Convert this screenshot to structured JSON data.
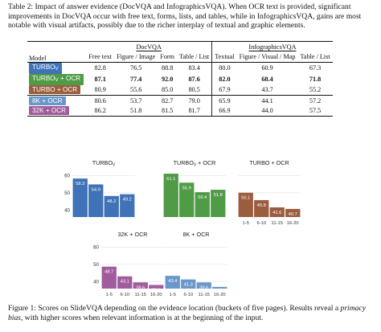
{
  "table": {
    "caption_label": "Table 2:",
    "caption_text": "Impact of answer evidence (DocVQA and InfographicsVQA). When OCR text is provided, significant improvements in DocVQA occur with free text, forms, lists, and tables, while in InfographicsVQA, gains are most notable with visual artifacts, possibly due to the richer interplay of textual and graphic elements.",
    "group_headers": [
      "DocVQA",
      "InfographicsVQA"
    ],
    "model_header": "Model",
    "columns": [
      "Free text",
      "Figure / Image",
      "Form",
      "Table / List",
      "Textual",
      "Figure / Visual / Map",
      "Table / List"
    ],
    "rows": [
      {
        "model": "TURBO",
        "sub": "V",
        "suffix": "",
        "color": "#3f72b6",
        "values": [
          "82.8",
          "76.5",
          "88.8",
          "83.4",
          "80.0",
          "60.9",
          "67.3"
        ],
        "bold": false
      },
      {
        "model": "TURBO",
        "sub": "V",
        "suffix": " + OCR",
        "color": "#4f9b46",
        "values": [
          "87.1",
          "77.4",
          "92.0",
          "87.6",
          "82.0",
          "68.4",
          "71.8"
        ],
        "bold": true
      },
      {
        "model": "TURBO + OCR",
        "sub": "",
        "suffix": "",
        "color": "#9a5e3f",
        "values": [
          "80.9",
          "55.6",
          "85.0",
          "80.5",
          "67.9",
          "43.7",
          "55.2"
        ],
        "bold": false
      },
      {
        "model": "8K + OCR",
        "sub": "",
        "suffix": "",
        "color": "#6a97c9",
        "values": [
          "80.6",
          "53.7",
          "82.7",
          "79.0",
          "65.9",
          "44.1",
          "57.2"
        ],
        "bold": false
      },
      {
        "model": "32K + OCR",
        "sub": "",
        "suffix": "",
        "color": "#a05c9c",
        "values": [
          "86.2",
          "51.8",
          "81.5",
          "81.7",
          "66.9",
          "44.0",
          "57.5"
        ],
        "bold": false
      }
    ]
  },
  "figure": {
    "caption_label": "Figure 1:",
    "caption_text_1": "Scores on SlideVQA depending on the evidence location (buckets of five pages). Results reveal a",
    "caption_italic": "primacy bias",
    "caption_text_2": ", with higher scores when relevant information is at the beginning of the input."
  },
  "chart_data": [
    {
      "type": "bar",
      "title": "TURBO",
      "title_sub": "V",
      "title_suffix": "",
      "color": "#3f72b6",
      "categories": [
        "1-5",
        "6-10",
        "11-15",
        "16-20"
      ],
      "values": [
        58.3,
        54.9,
        48.2,
        49.2
      ],
      "show_y_ticks": true,
      "show_x_ticks": false,
      "yticks": [
        40,
        50,
        60
      ],
      "ylim": [
        36,
        63
      ]
    },
    {
      "type": "bar",
      "title": "TURBO",
      "title_sub": "V",
      "title_suffix": " + OCR",
      "color": "#4f9b46",
      "categories": [
        "1-5",
        "6-10",
        "11-15",
        "16-20"
      ],
      "values": [
        61.1,
        55.9,
        50.4,
        51.8
      ],
      "show_y_ticks": false,
      "show_x_ticks": false,
      "yticks": [
        40,
        50,
        60
      ],
      "ylim": [
        36,
        63
      ]
    },
    {
      "type": "bar",
      "title": "TURBO + OCR",
      "title_sub": "",
      "title_suffix": "",
      "color": "#9a5e3f",
      "categories": [
        "1-5",
        "6-10",
        "11-15",
        "16-20"
      ],
      "values": [
        50.1,
        45.8,
        41.6,
        40.7
      ],
      "show_y_ticks": false,
      "show_x_ticks": true,
      "yticks": [
        40,
        50,
        60
      ],
      "ylim": [
        36,
        63
      ]
    },
    {
      "type": "bar",
      "title": "32K + OCR",
      "title_sub": "",
      "title_suffix": "",
      "color": "#a05c9c",
      "categories": [
        "1-5",
        "6-10",
        "11-15",
        "16-20"
      ],
      "values": [
        48.7,
        43.1,
        39.6,
        38.1
      ],
      "show_y_ticks": true,
      "show_x_ticks": true,
      "yticks": [
        40,
        50,
        60
      ],
      "ylim": [
        36,
        63
      ]
    },
    {
      "type": "bar",
      "title": "8K + OCR",
      "title_sub": "",
      "title_suffix": "",
      "color": "#6a97c9",
      "categories": [
        "1-5",
        "6-10",
        "11-15",
        "16-20"
      ],
      "values": [
        43.4,
        41.3,
        39.6,
        37.0
      ],
      "show_y_ticks": false,
      "show_x_ticks": true,
      "yticks": [
        40,
        50,
        60
      ],
      "ylim": [
        36,
        63
      ]
    }
  ]
}
